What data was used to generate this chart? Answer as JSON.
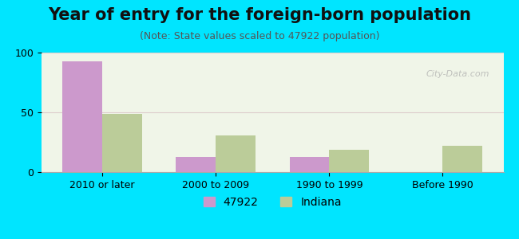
{
  "title": "Year of entry for the foreign-born population",
  "subtitle": "(Note: State values scaled to 47922 population)",
  "categories": [
    "2010 or later",
    "2000 to 2009",
    "1990 to 1999",
    "Before 1990"
  ],
  "values_47922": [
    93,
    13,
    13,
    0
  ],
  "values_indiana": [
    49,
    31,
    19,
    22
  ],
  "color_47922": "#cc99cc",
  "color_indiana": "#bbcc99",
  "background_outer": "#00e5ff",
  "background_inner": "#f0f5e8",
  "ylim": [
    0,
    100
  ],
  "yticks": [
    0,
    50,
    100
  ],
  "legend_label_1": "47922",
  "legend_label_2": "Indiana",
  "bar_width": 0.35,
  "title_fontsize": 15,
  "subtitle_fontsize": 9,
  "tick_fontsize": 9,
  "legend_fontsize": 10
}
